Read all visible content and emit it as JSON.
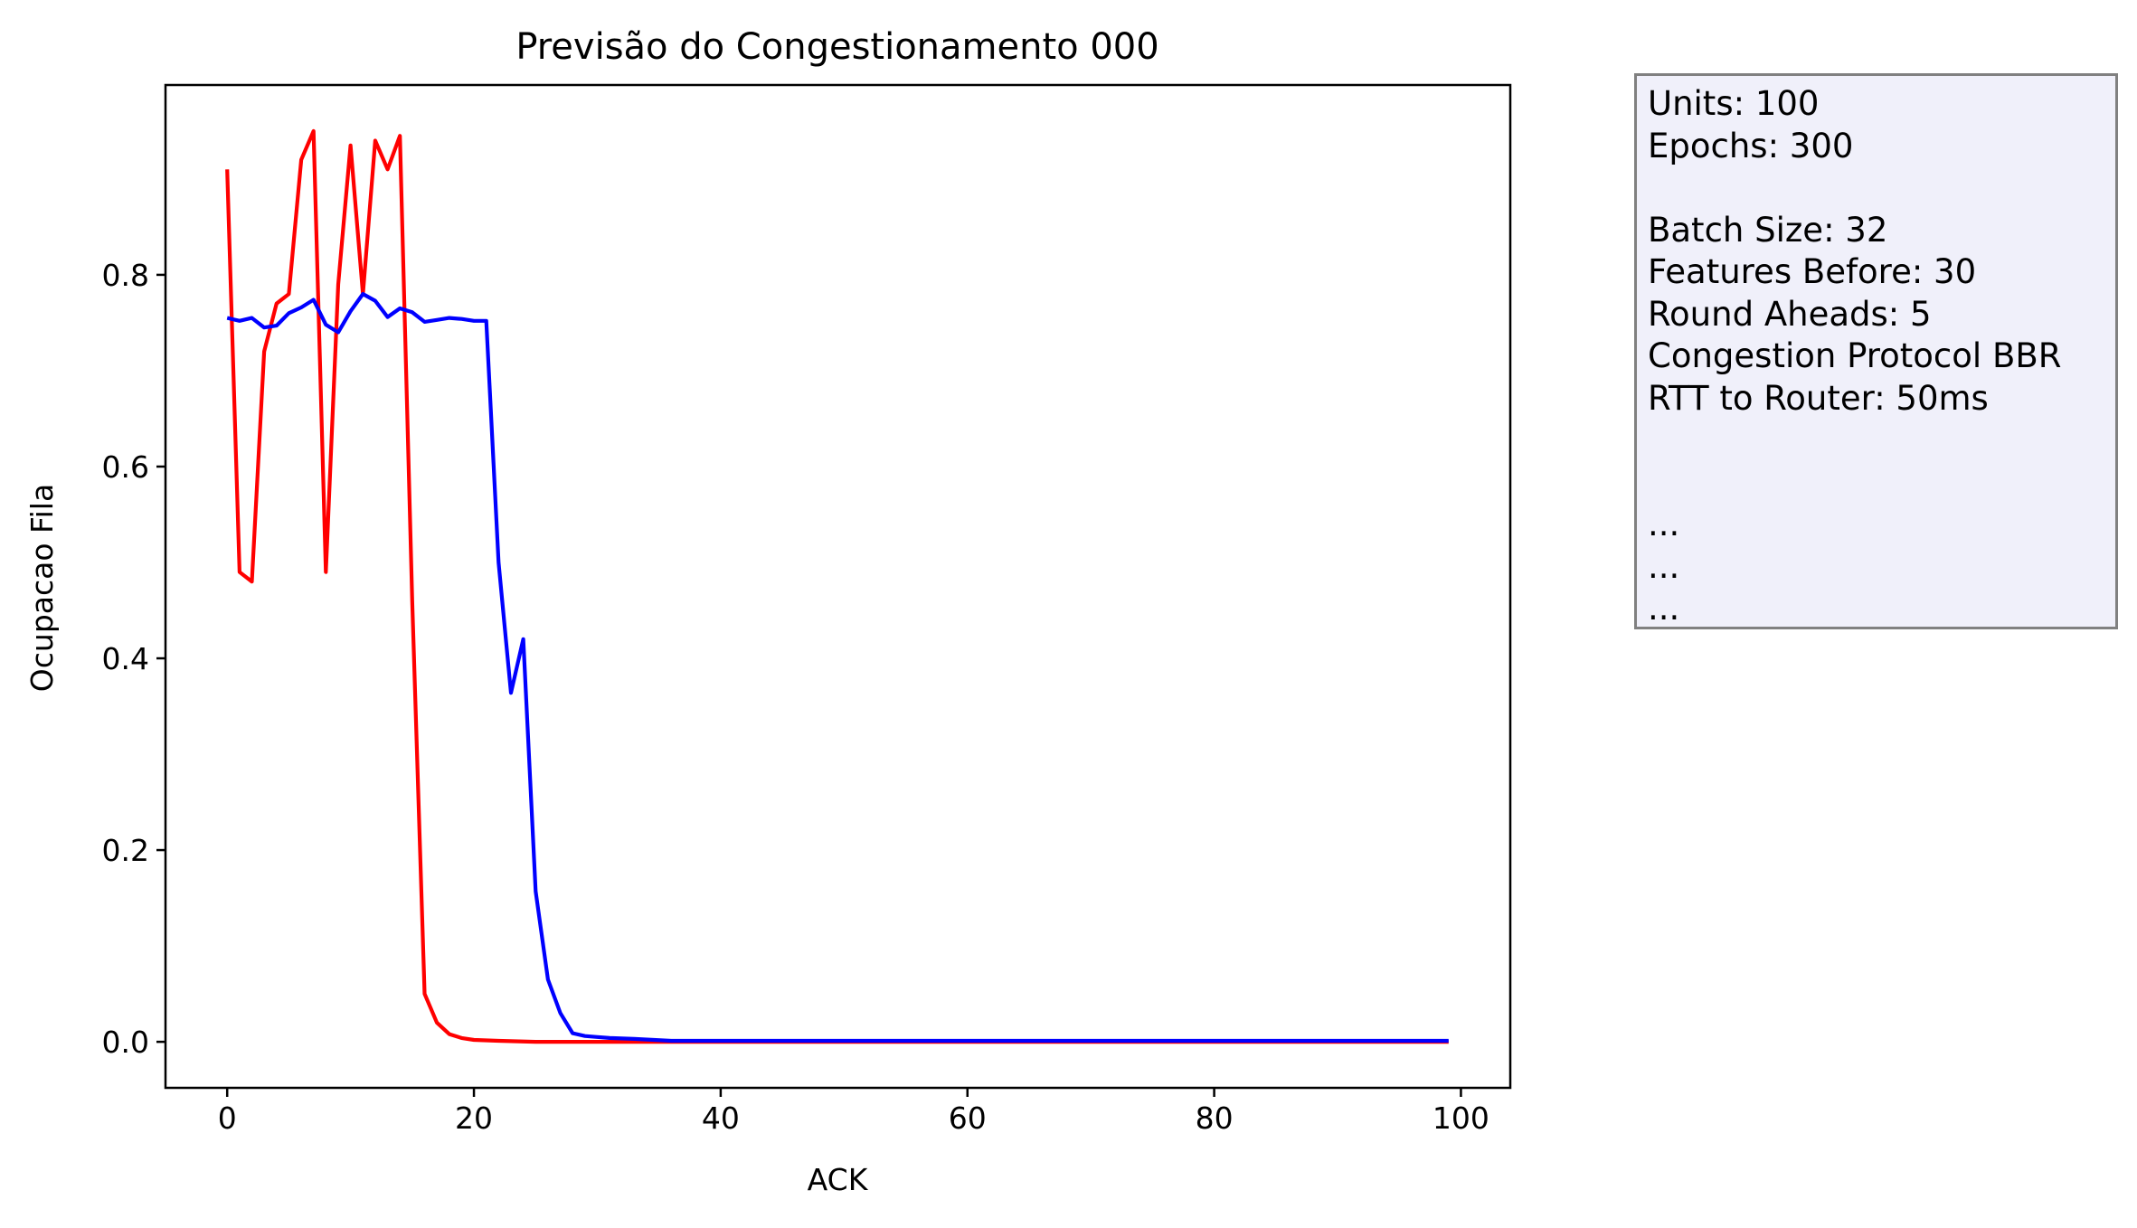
{
  "chart_data": {
    "type": "line",
    "title": "Previsão do Congestionamento 000",
    "xlabel": "ACK",
    "ylabel": "Ocupacao Fila",
    "xlim": [
      -5,
      104
    ],
    "ylim": [
      -0.048,
      0.998
    ],
    "xticks": [
      0,
      20,
      40,
      60,
      80,
      100
    ],
    "xtick_labels": [
      "0",
      "20",
      "40",
      "60",
      "80",
      "100"
    ],
    "yticks": [
      0.0,
      0.2,
      0.4,
      0.6,
      0.8
    ],
    "ytick_labels": [
      "0.0",
      "0.2",
      "0.4",
      "0.6",
      "0.8"
    ],
    "grid": false,
    "series": [
      {
        "color": "#ff0000",
        "points": [
          [
            0,
            0.91
          ],
          [
            1,
            0.49
          ],
          [
            2,
            0.48
          ],
          [
            3,
            0.72
          ],
          [
            4,
            0.77
          ],
          [
            5,
            0.78
          ],
          [
            6,
            0.92
          ],
          [
            7,
            0.95
          ],
          [
            8,
            0.49
          ],
          [
            9,
            0.79
          ],
          [
            10,
            0.935
          ],
          [
            11,
            0.78
          ],
          [
            12,
            0.94
          ],
          [
            13,
            0.91
          ],
          [
            14,
            0.945
          ],
          [
            15,
            0.46
          ],
          [
            16,
            0.05
          ],
          [
            17,
            0.02
          ],
          [
            18,
            0.008
          ],
          [
            19,
            0.004
          ],
          [
            20,
            0.002
          ],
          [
            22,
            0.001
          ],
          [
            25,
            0.0
          ],
          [
            99,
            0.0
          ]
        ]
      },
      {
        "color": "#0000ff",
        "points": [
          [
            0,
            0.755
          ],
          [
            1,
            0.752
          ],
          [
            2,
            0.755
          ],
          [
            3,
            0.745
          ],
          [
            4,
            0.747
          ],
          [
            5,
            0.76
          ],
          [
            6,
            0.766
          ],
          [
            7,
            0.774
          ],
          [
            8,
            0.748
          ],
          [
            9,
            0.74
          ],
          [
            10,
            0.762
          ],
          [
            11,
            0.78
          ],
          [
            12,
            0.773
          ],
          [
            13,
            0.756
          ],
          [
            14,
            0.765
          ],
          [
            15,
            0.761
          ],
          [
            16,
            0.751
          ],
          [
            17,
            0.753
          ],
          [
            18,
            0.755
          ],
          [
            19,
            0.754
          ],
          [
            20,
            0.752
          ],
          [
            21,
            0.752
          ],
          [
            22,
            0.5
          ],
          [
            23,
            0.364
          ],
          [
            24,
            0.42
          ],
          [
            25,
            0.157
          ],
          [
            26,
            0.065
          ],
          [
            27,
            0.03
          ],
          [
            28,
            0.009
          ],
          [
            29,
            0.006
          ],
          [
            30,
            0.005
          ],
          [
            31,
            0.004
          ],
          [
            33,
            0.003
          ],
          [
            36,
            0.001
          ],
          [
            40,
            0.001
          ],
          [
            99,
            0.001
          ]
        ]
      }
    ]
  },
  "info_box": {
    "background": "#f0f0fa",
    "border_color": "#808080",
    "lines": [
      "Units: 100",
      "Epochs: 300",
      "",
      "Batch Size: 32",
      "Features Before: 30",
      "Round Aheads: 5",
      "Congestion Protocol BBR",
      "RTT to Router: 50ms",
      "",
      "",
      "...",
      "...",
      "..."
    ]
  }
}
